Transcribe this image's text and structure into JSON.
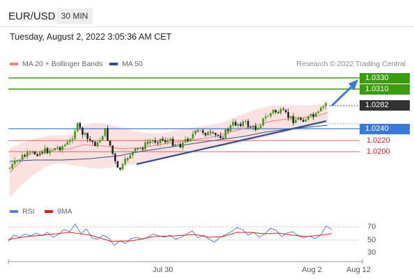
{
  "header": {
    "pair": "EUR/USD",
    "timeframe": "30 MIN",
    "datetime": "Tuesday, August 2, 2022 3:05:36 AM CET"
  },
  "legend": {
    "ma20": "MA 20 + Bollinger Bands",
    "ma50": "MA 50",
    "credit": "Research © 2022 Trading Central",
    "rsi": "RSI",
    "ma9": "9MA"
  },
  "colors": {
    "ma20": "#f08080",
    "ma50": "#2f4f8f",
    "green": "#3b9d0e",
    "blue": "#3a7ad6",
    "red": "#d42020",
    "rsi": "#5b7fd6",
    "ma9": "#d42020"
  },
  "price_labels": {
    "r2": "1.0330",
    "r1": "1.0310",
    "last": "1.0282",
    "pivot": "1.0240",
    "s1": "1.0220",
    "s2": "1.0200"
  },
  "rsi_ticks": [
    "70",
    "50",
    "30"
  ],
  "x_axis": [
    "Jul 30",
    "Aug 2",
    "Aug 12"
  ]
}
